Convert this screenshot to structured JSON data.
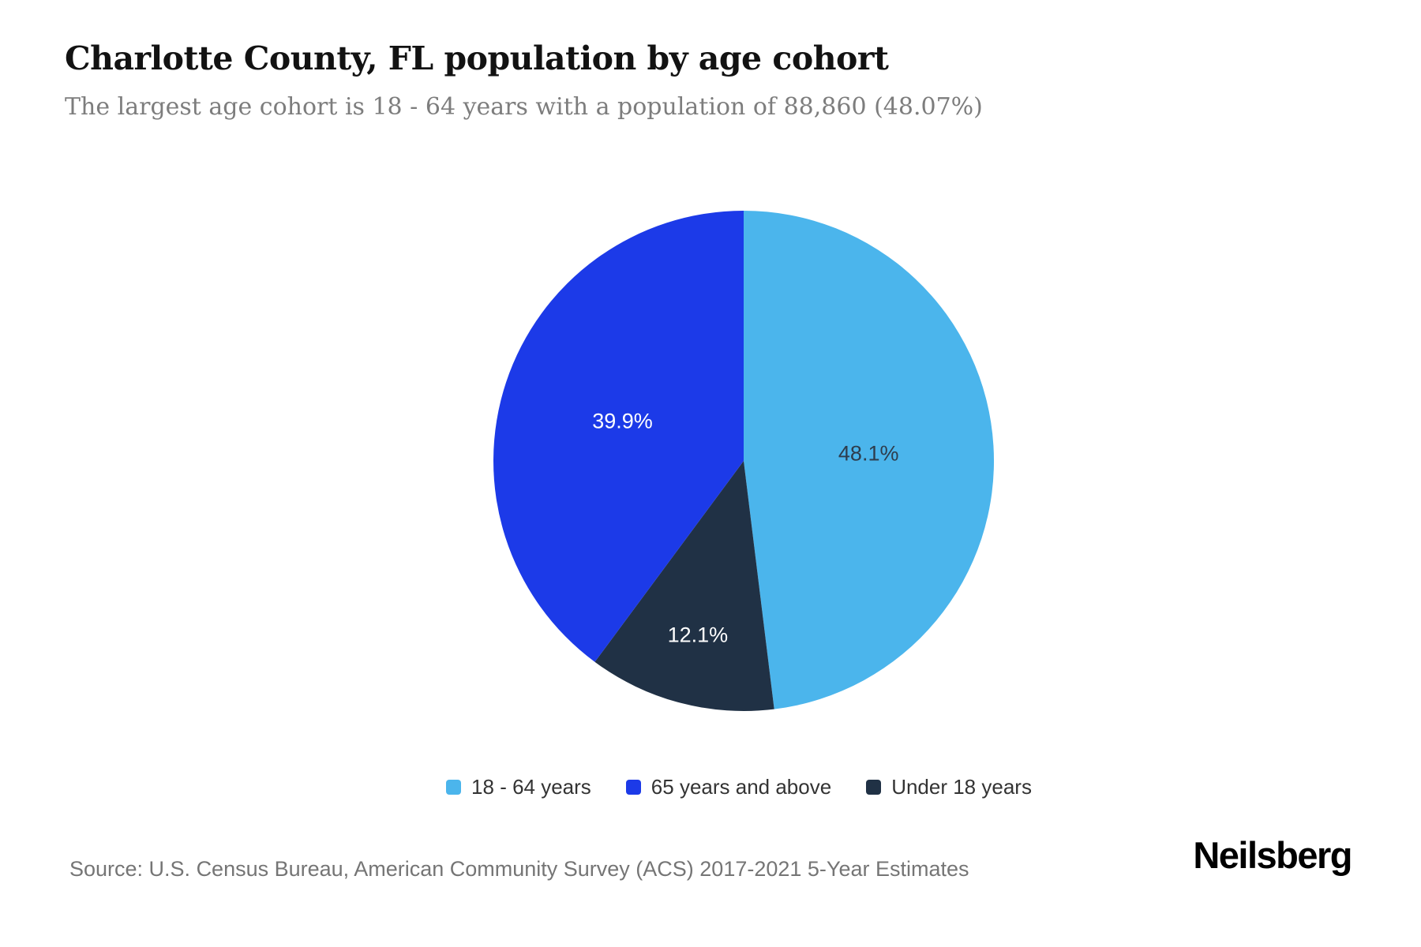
{
  "header": {
    "title": "Charlotte County, FL population by age cohort",
    "subtitle": "The largest age cohort is 18 - 64 years with a population of 88,860 (48.07%)"
  },
  "chart_data": {
    "type": "pie",
    "title": "Charlotte County, FL population by age cohort",
    "unit": "percent of population",
    "direction": "clockwise",
    "start_angle_deg": 0,
    "legend_position": "bottom",
    "series": [
      {
        "label": "18 - 64 years",
        "value": 48.1,
        "display": "48.1%",
        "color": "#4BB5EC",
        "label_color": "#2E3D4D"
      },
      {
        "label": "Under 18 years",
        "value": 12.1,
        "display": "12.1%",
        "color": "#203145",
        "label_color": "#FFFFFF"
      },
      {
        "label": "65 years and above",
        "value": 39.9,
        "display": "39.9%",
        "color": "#1C3AE8",
        "label_color": "#FFFFFF"
      }
    ],
    "largest_cohort": {
      "label": "18 - 64 years",
      "population": "88,860",
      "share": "48.07%"
    }
  },
  "legend": {
    "items": [
      {
        "label": "18 - 64 years",
        "color": "#4BB5EC"
      },
      {
        "label": "65 years and above",
        "color": "#1C3AE8"
      },
      {
        "label": "Under 18 years",
        "color": "#203145"
      }
    ]
  },
  "footer": {
    "source": "Source: U.S. Census Bureau, American Community Survey (ACS) 2017-2021 5-Year Estimates",
    "brand": "Neilsberg"
  }
}
